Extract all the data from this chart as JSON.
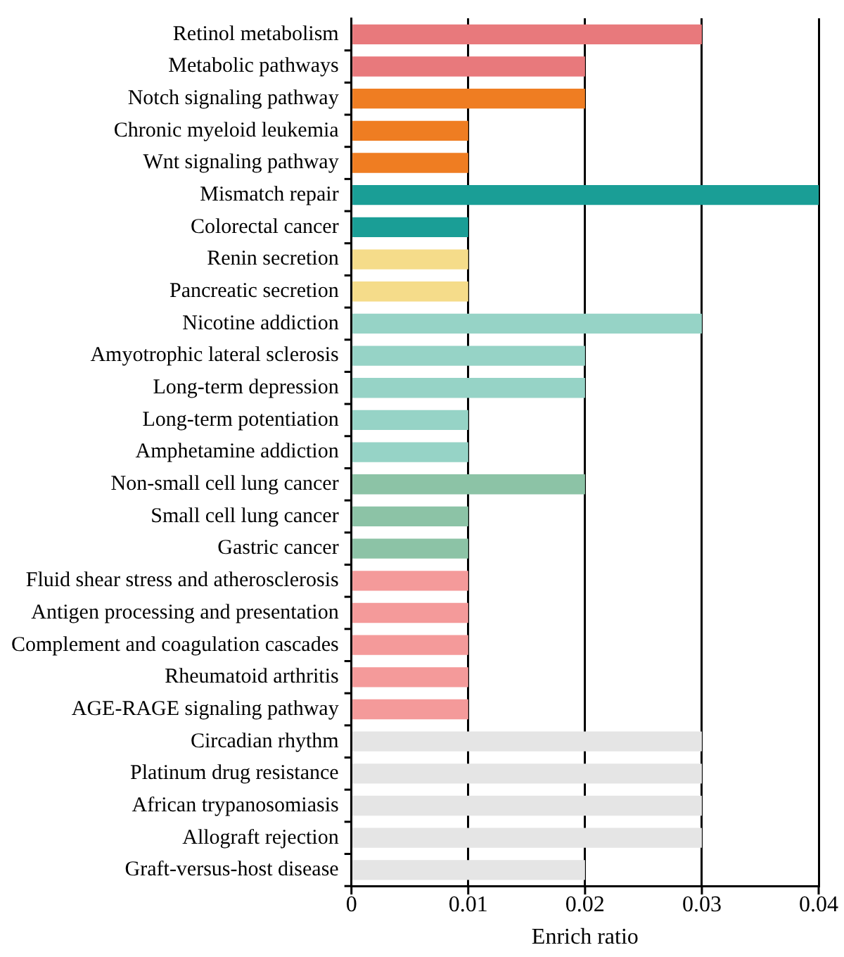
{
  "chart_data": {
    "type": "bar",
    "orientation": "horizontal",
    "xlabel": "Enrich ratio",
    "categories": [
      "Retinol metabolism",
      "Metabolic pathways",
      "Notch signaling pathway",
      "Chronic myeloid leukemia",
      "Wnt signaling pathway",
      "Mismatch repair",
      "Colorectal cancer",
      "Renin secretion",
      "Pancreatic secretion",
      "Nicotine addiction",
      "Amyotrophic lateral sclerosis",
      "Long-term depression",
      "Long-term potentiation",
      "Amphetamine addiction",
      "Non-small cell lung cancer",
      "Small cell lung cancer",
      "Gastric cancer",
      "Fluid shear stress and atherosclerosis",
      "Antigen processing and presentation",
      "Complement and coagulation cascades",
      "Rheumatoid arthritis",
      "AGE-RAGE signaling pathway",
      "Circadian rhythm",
      "Platinum drug resistance",
      "African trypanosomiasis",
      "Allograft rejection",
      "Graft-versus-host disease"
    ],
    "values": [
      0.03,
      0.02,
      0.02,
      0.01,
      0.01,
      0.04,
      0.01,
      0.01,
      0.01,
      0.03,
      0.02,
      0.02,
      0.01,
      0.01,
      0.02,
      0.01,
      0.01,
      0.01,
      0.01,
      0.01,
      0.01,
      0.01,
      0.03,
      0.03,
      0.03,
      0.03,
      0.02
    ],
    "colors": [
      "#e8797c",
      "#e8797c",
      "#ef7d22",
      "#ef7d22",
      "#ef7d22",
      "#1a9e96",
      "#1a9e96",
      "#f5dc8a",
      "#f5dc8a",
      "#96d3c6",
      "#96d3c6",
      "#96d3c6",
      "#96d3c6",
      "#96d3c6",
      "#8cc3a6",
      "#8cc3a6",
      "#8cc3a6",
      "#f49a9a",
      "#f49a9a",
      "#f49a9a",
      "#f49a9a",
      "#f49a9a",
      "#e5e5e5",
      "#e5e5e5",
      "#e5e5e5",
      "#e5e5e5",
      "#e5e5e5"
    ],
    "xlim": [
      0,
      0.04
    ],
    "xticks": [
      0,
      0.01,
      0.02,
      0.03,
      0.04
    ],
    "grid": "x",
    "legend": false
  }
}
